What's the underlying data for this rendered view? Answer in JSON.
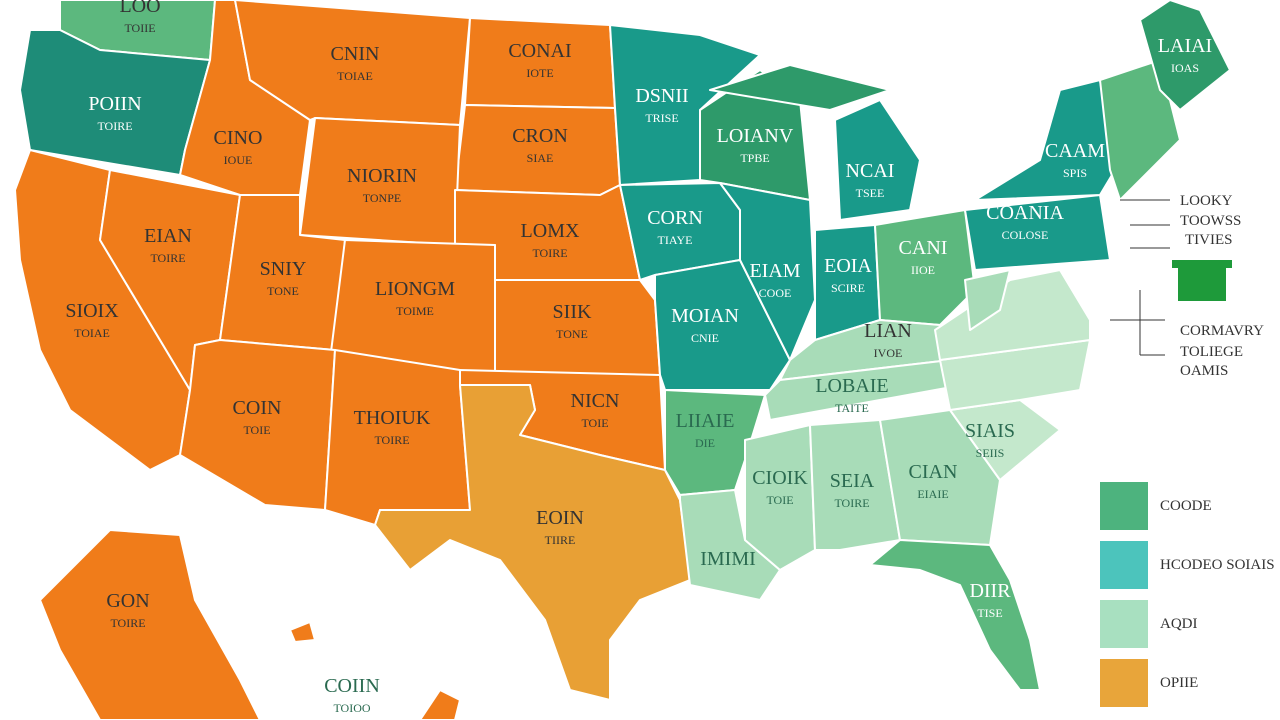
{
  "states": [
    {
      "label": "LOO",
      "sublabel": "TOIIE"
    },
    {
      "label": "POIIN",
      "sublabel": "TOIRE"
    },
    {
      "label": "CNIN",
      "sublabel": "TOIAE"
    },
    {
      "label": "CONAI",
      "sublabel": "IOTE"
    },
    {
      "label": "CINO",
      "sublabel": "IOUE"
    },
    {
      "label": "CRON",
      "sublabel": "SIAE"
    },
    {
      "label": "NIORIN",
      "sublabel": "TONPE"
    },
    {
      "label": "DSNII",
      "sublabel": "TRISE"
    },
    {
      "label": "LOIANV",
      "sublabel": "TPBE"
    },
    {
      "label": "NCAI",
      "sublabel": "TSEE"
    },
    {
      "label": "LAIAI",
      "sublabel": "IOAS"
    },
    {
      "label": "CAAM",
      "sublabel": "SPIS"
    },
    {
      "label": "EIAN",
      "sublabel": "TOIRE"
    },
    {
      "label": "LOMX",
      "sublabel": "TOIRE"
    },
    {
      "label": "CORN",
      "sublabel": "TIAYE"
    },
    {
      "label": "COANIA",
      "sublabel": "COLOSE"
    },
    {
      "label": "SNIY",
      "sublabel": "TONE"
    },
    {
      "label": "LIONGM",
      "sublabel": "TOIME"
    },
    {
      "label": "EIAM",
      "sublabel": "COOE"
    },
    {
      "label": "EOIA",
      "sublabel": "SCIRE"
    },
    {
      "label": "CANI",
      "sublabel": "IIOE"
    },
    {
      "label": "SIOIX",
      "sublabel": "TOIAE"
    },
    {
      "label": "SIIK",
      "sublabel": "TONE"
    },
    {
      "label": "MOIAN",
      "sublabel": "CNIE"
    },
    {
      "label": "LIAN",
      "sublabel": "IVOE"
    },
    {
      "label": "COIN",
      "sublabel": "TOIE"
    },
    {
      "label": "THOIUK",
      "sublabel": "TOIRE"
    },
    {
      "label": "NICN",
      "sublabel": "TOIE"
    },
    {
      "label": "LIIAIE",
      "sublabel": "DIE"
    },
    {
      "label": "LOBAIE",
      "sublabel": "TAITE"
    },
    {
      "label": "SIAIS",
      "sublabel": "SEIIS"
    },
    {
      "label": "CIOIK",
      "sublabel": "TOIE"
    },
    {
      "label": "SEIA",
      "sublabel": "TOIRE"
    },
    {
      "label": "CIAN",
      "sublabel": "EIAIE"
    },
    {
      "label": "EOIN",
      "sublabel": "TIIRE"
    },
    {
      "label": "IMIMI"
    },
    {
      "label": "DIIR",
      "sublabel": "TISE"
    },
    {
      "label": "GON",
      "sublabel": "TOIRE"
    },
    {
      "label": "COIIN",
      "sublabel": "TOIOO"
    }
  ],
  "annotations": [
    {
      "lines": [
        "LOOKY",
        "TOOWSS",
        "TIVIES"
      ]
    },
    {
      "lines": [
        "CORMAVRY",
        "TOLIEGE",
        "OAMIS"
      ]
    }
  ],
  "legend": [
    {
      "label": "COODE",
      "color": "#4db37e"
    },
    {
      "label": "HCODEO SOIAIS",
      "color": "#4cc4bc"
    },
    {
      "label": "AQDI",
      "color": "#a8e0c0"
    },
    {
      "label": "OPIIE",
      "color": "#e8a53a"
    }
  ]
}
